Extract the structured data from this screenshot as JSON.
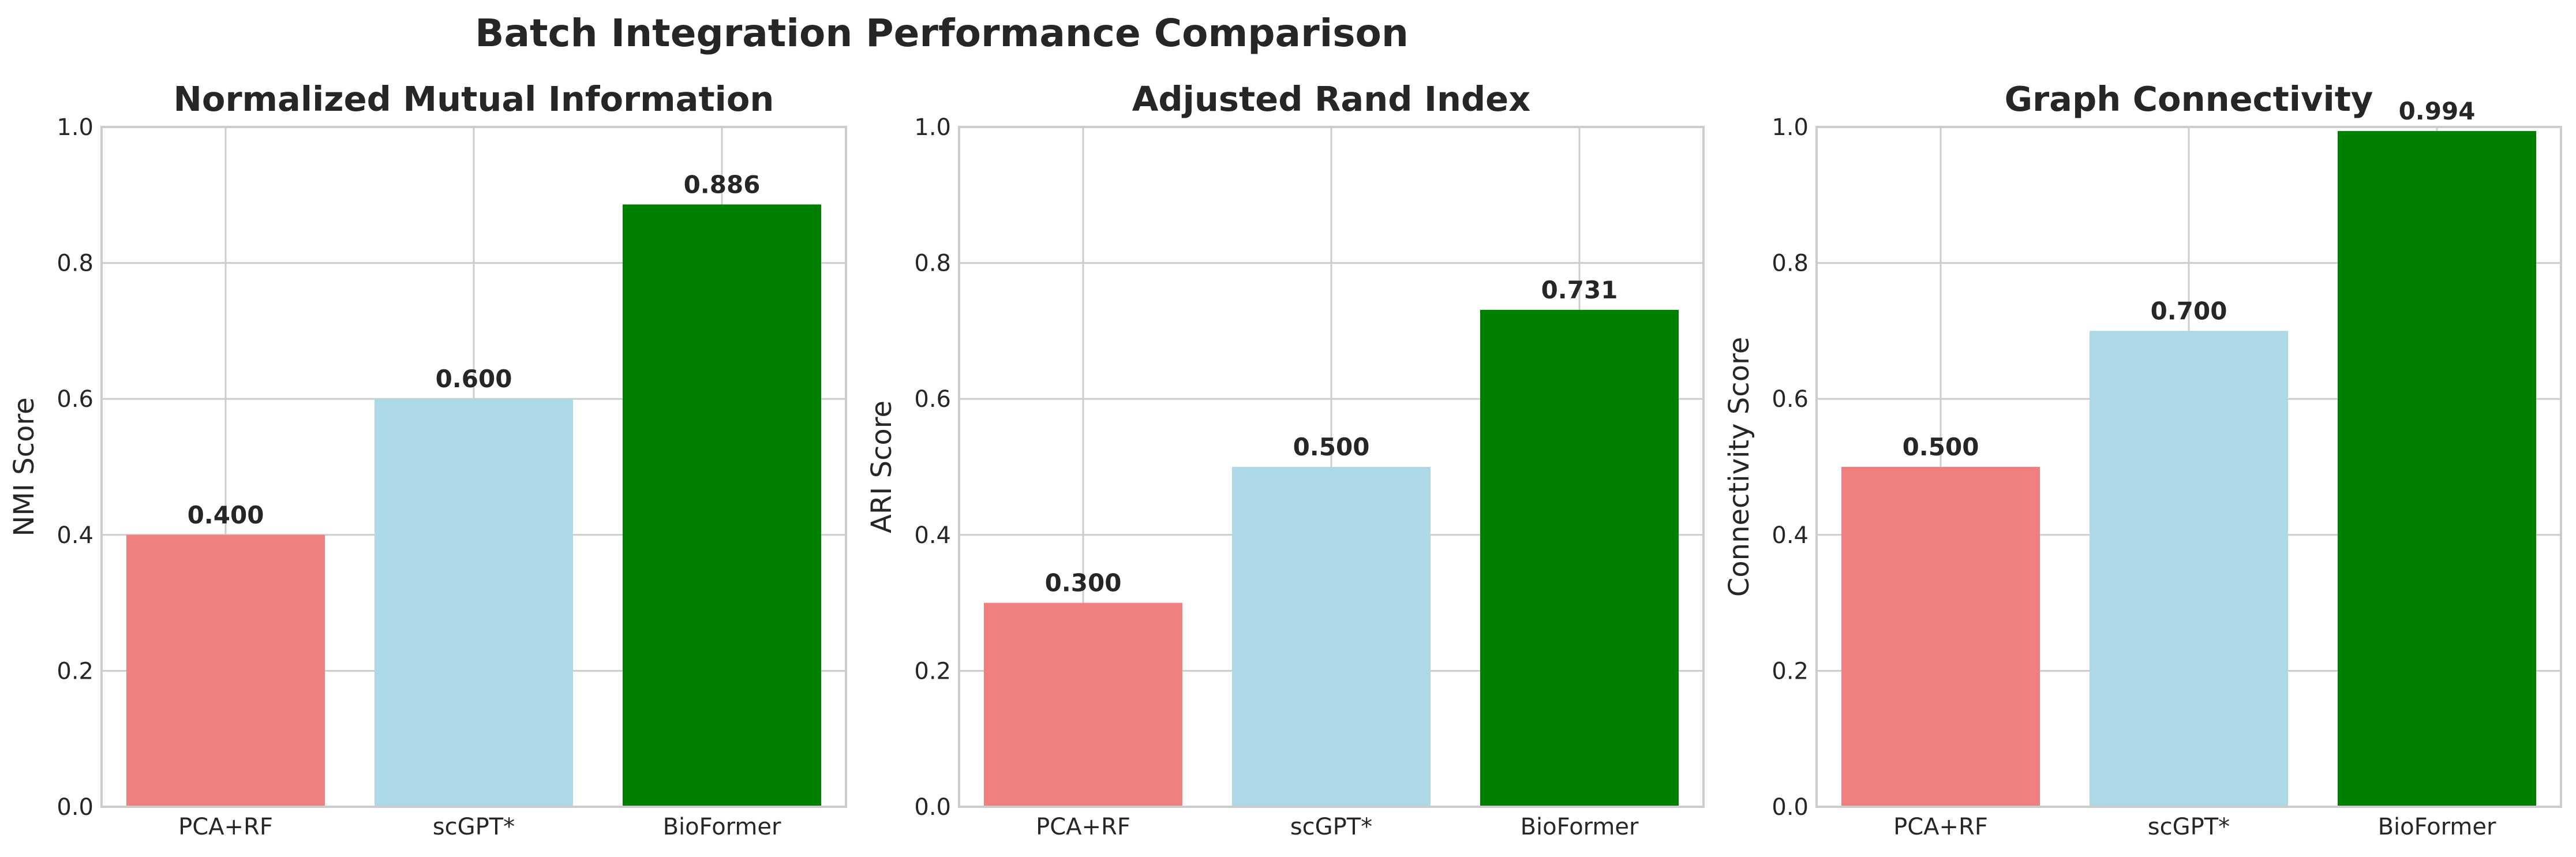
{
  "title": "Batch Integration Performance Comparison",
  "chart_data": [
    {
      "type": "bar",
      "title": "Normalized Mutual Information",
      "xlabel": "",
      "ylabel": "NMI Score",
      "categories": [
        "PCA+RF",
        "scGPT*",
        "BioFormer"
      ],
      "values": [
        0.4,
        0.6,
        0.886
      ],
      "value_labels": [
        "0.400",
        "0.600",
        "0.886"
      ],
      "colors": [
        "#f08080",
        "#add8e6",
        "#008000"
      ],
      "ylim": [
        0,
        1.0
      ],
      "yticks": [
        "0.0",
        "0.2",
        "0.4",
        "0.6",
        "0.8",
        "1.0"
      ],
      "grid": true
    },
    {
      "type": "bar",
      "title": "Adjusted Rand Index",
      "xlabel": "",
      "ylabel": "ARI Score",
      "categories": [
        "PCA+RF",
        "scGPT*",
        "BioFormer"
      ],
      "values": [
        0.3,
        0.5,
        0.731
      ],
      "value_labels": [
        "0.300",
        "0.500",
        "0.731"
      ],
      "colors": [
        "#f08080",
        "#add8e6",
        "#008000"
      ],
      "ylim": [
        0,
        1.0
      ],
      "yticks": [
        "0.0",
        "0.2",
        "0.4",
        "0.6",
        "0.8",
        "1.0"
      ],
      "grid": true
    },
    {
      "type": "bar",
      "title": "Graph Connectivity",
      "xlabel": "",
      "ylabel": "Connectivity Score",
      "categories": [
        "PCA+RF",
        "scGPT*",
        "BioFormer"
      ],
      "values": [
        0.5,
        0.7,
        0.994
      ],
      "value_labels": [
        "0.500",
        "0.700",
        "0.994"
      ],
      "colors": [
        "#f08080",
        "#add8e6",
        "#008000"
      ],
      "ylim": [
        0,
        1.0
      ],
      "yticks": [
        "0.0",
        "0.2",
        "0.4",
        "0.6",
        "0.8",
        "1.0"
      ],
      "grid": true
    }
  ]
}
